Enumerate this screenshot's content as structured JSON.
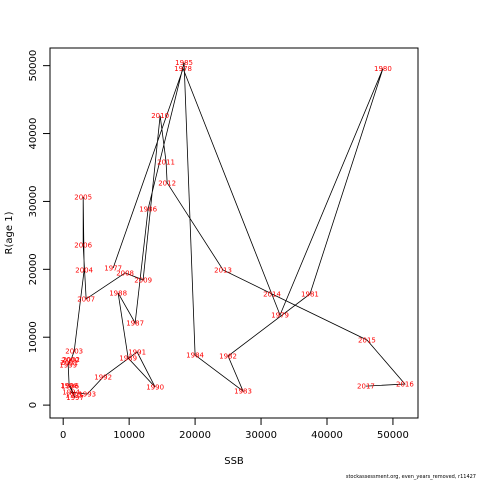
{
  "chart_data": {
    "type": "line",
    "xlabel": "SSB",
    "ylabel": "R(age 1)",
    "footer": "stockassessment.org, even_years_removed, r11427",
    "labels": [
      "1977",
      "1978",
      "1979",
      "1980",
      "1981",
      "1982",
      "1983",
      "1984",
      "1985",
      "1986",
      "1987",
      "1988",
      "1989",
      "1990",
      "1991",
      "1992",
      "1993",
      "1994",
      "1995",
      "1996",
      "1997",
      "1998",
      "1999",
      "2000",
      "2001",
      "2002",
      "2003",
      "2004",
      "2005",
      "2006",
      "2007",
      "2008",
      "2009",
      "2010",
      "2011",
      "2012",
      "2013",
      "2014",
      "2015",
      "2016",
      "2017"
    ],
    "x": [
      7576,
      18180,
      32880,
      48480,
      37420,
      25000,
      27270,
      20000,
      18330,
      12880,
      10910,
      8330,
      9850,
      13940,
      11210,
      6060,
      3640,
      1210,
      1670,
      1060,
      1800,
      900,
      760,
      1060,
      900,
      1200,
      1670,
      3180,
      3030,
      3030,
      3480,
      9390,
      12120,
      14700,
      15600,
      15760,
      24240,
      31670,
      46060,
      51820,
      45910
    ],
    "values": [
      20200,
      49560,
      13275,
      49560,
      16370,
      7230,
      2065,
      7375,
      50450,
      28910,
      12095,
      16520,
      6930,
      2655,
      7820,
      4130,
      1620,
      1920,
      1475,
      2800,
      1100,
      2900,
      5900,
      6640,
      6300,
      6700,
      7965,
      19910,
      30680,
      23600,
      15635,
      19470,
      18440,
      42630,
      35840,
      32745,
      19910,
      16370,
      9590,
      3100,
      2800
    ],
    "line_color": "#000000",
    "label_color": "#ff0000",
    "xlim": [
      -2000,
      53800
    ],
    "ylim": [
      -1900,
      52600
    ],
    "xticks": [
      0,
      10000,
      20000,
      30000,
      40000,
      50000
    ],
    "yticks": [
      0,
      10000,
      20000,
      30000,
      40000,
      50000
    ]
  }
}
